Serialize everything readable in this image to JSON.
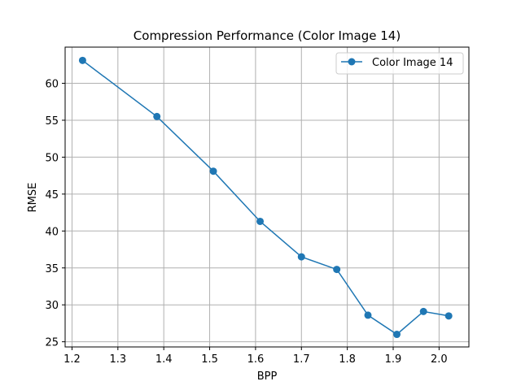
{
  "chart_data": {
    "type": "line",
    "title": "Compression Performance (Color Image 14)",
    "xlabel": "BPP",
    "ylabel": "RMSE",
    "xlim": [
      1.185,
      2.065
    ],
    "ylim": [
      24.3,
      64.9
    ],
    "xticks": [
      1.2,
      1.3,
      1.4,
      1.5,
      1.6,
      1.7,
      1.8,
      1.9,
      2.0
    ],
    "xtick_labels": [
      "1.2",
      "1.3",
      "1.4",
      "1.5",
      "1.6",
      "1.7",
      "1.8",
      "1.9",
      "2.0"
    ],
    "yticks": [
      25,
      30,
      35,
      40,
      45,
      50,
      55,
      60
    ],
    "ytick_labels": [
      "25",
      "30",
      "35",
      "40",
      "45",
      "50",
      "55",
      "60"
    ],
    "grid": true,
    "legend_position": "top-right",
    "series": [
      {
        "name": "Color Image 14",
        "color": "#1f77b4",
        "marker": "circle",
        "x": [
          1.223,
          1.385,
          1.508,
          1.61,
          1.7,
          1.777,
          1.845,
          1.908,
          1.966,
          2.021
        ],
        "y": [
          63.1,
          55.5,
          48.1,
          41.3,
          36.5,
          34.8,
          28.6,
          26.0,
          29.1,
          28.5
        ]
      }
    ]
  }
}
